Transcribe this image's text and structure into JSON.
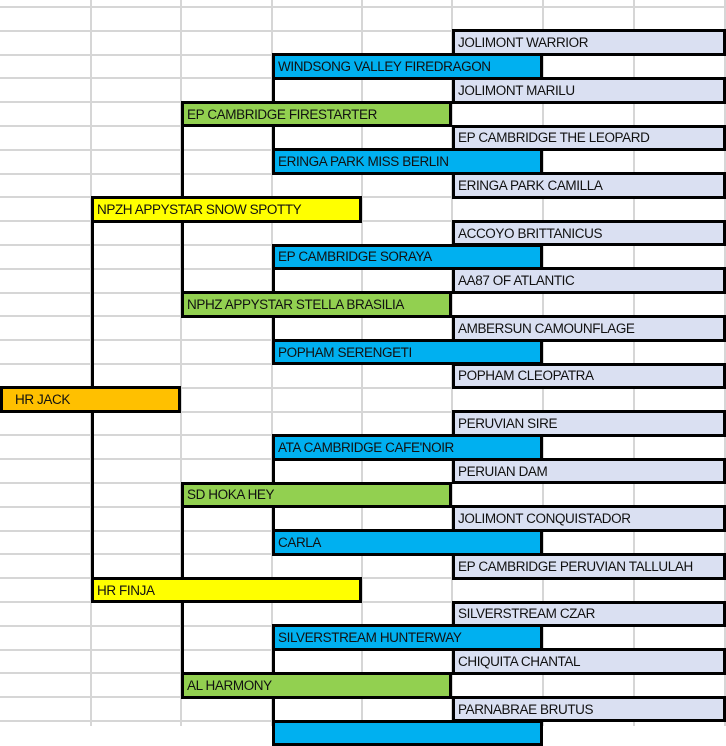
{
  "palette": {
    "gen0": "#ffc000",
    "gen1": "#ffff00",
    "gen2": "#92d050",
    "gen3": "#00b0f0",
    "gen4": "#dae0f2"
  },
  "pedigree": [
    {
      "name": "JOLIMONT WARRIOR",
      "gen": 4
    },
    {
      "name": "WINDSONG VALLEY FIREDRAGON",
      "gen": 3
    },
    {
      "name": "JOLIMONT MARILU",
      "gen": 4
    },
    {
      "name": "EP CAMBRIDGE FIRESTARTER",
      "gen": 2
    },
    {
      "name": "EP CAMBRIDGE THE LEOPARD",
      "gen": 4
    },
    {
      "name": "ERINGA PARK MISS BERLIN",
      "gen": 3
    },
    {
      "name": "ERINGA PARK CAMILLA",
      "gen": 4
    },
    {
      "name": "NPZH APPYSTAR SNOW SPOTTY",
      "gen": 1
    },
    {
      "name": "ACCOYO BRITTANICUS",
      "gen": 4
    },
    {
      "name": "EP CAMBRIDGE SORAYA",
      "gen": 3
    },
    {
      "name": "AA87 OF ATLANTIC",
      "gen": 4
    },
    {
      "name": "NPHZ APPYSTAR STELLA BRASILIA",
      "gen": 2
    },
    {
      "name": "AMBERSUN CAMOUNFLAGE",
      "gen": 4
    },
    {
      "name": "POPHAM SERENGETI",
      "gen": 3
    },
    {
      "name": "POPHAM CLEOPATRA",
      "gen": 4
    },
    {
      "name": "HR JACK",
      "gen": 0
    },
    {
      "name": "PERUVIAN SIRE",
      "gen": 4
    },
    {
      "name": "ATA CAMBRIDGE CAFE'NOIR",
      "gen": 3
    },
    {
      "name": "PERUIAN DAM",
      "gen": 4
    },
    {
      "name": "SD HOKA HEY",
      "gen": 2
    },
    {
      "name": "JOLIMONT CONQUISTADOR",
      "gen": 4
    },
    {
      "name": "CARLA",
      "gen": 3
    },
    {
      "name": "EP CAMBRIDGE  PERUVIAN TALLULAH",
      "gen": 4
    },
    {
      "name": "HR FINJA",
      "gen": 1
    },
    {
      "name": "SILVERSTREAM CZAR",
      "gen": 4
    },
    {
      "name": "SILVERSTREAM HUNTERWAY",
      "gen": 3
    },
    {
      "name": "CHIQUITA CHANTAL",
      "gen": 4
    },
    {
      "name": "AL HARMONY",
      "gen": 2
    },
    {
      "name": "PARNABRAE BRUTUS",
      "gen": 4
    },
    {
      "name": "",
      "gen": 3
    }
  ]
}
